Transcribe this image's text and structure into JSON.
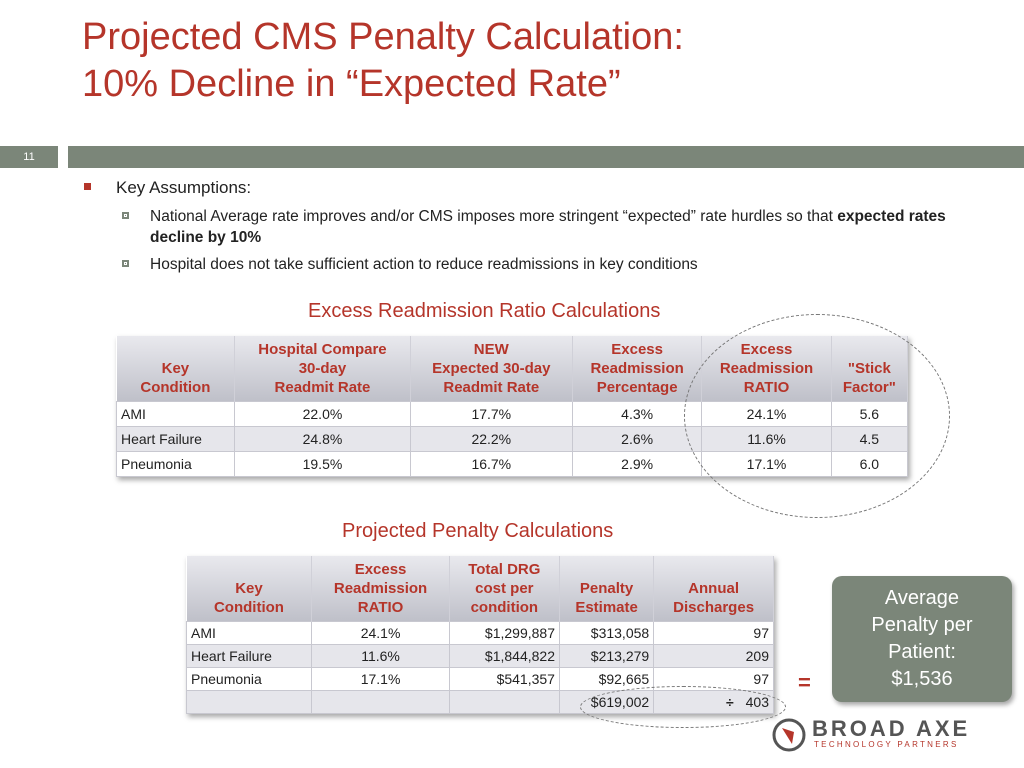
{
  "title": {
    "line1": "Projected CMS Penalty Calculation:",
    "line2": "10% Decline in “Expected Rate”"
  },
  "slide_number": "11",
  "bullets": {
    "main": "Key Assumptions:",
    "sub1_prefix": "National Average rate improves and/or CMS imposes more stringent “expected” rate hurdles so that ",
    "sub1_bold": "expected rates decline by 10%",
    "sub2": "Hospital does not take sufficient action to reduce readmissions in key conditions"
  },
  "table1": {
    "title": "Excess Readmission Ratio Calculations",
    "headers": [
      [
        "Key",
        "Condition"
      ],
      [
        "Hospital Compare",
        "30-day",
        "Readmit Rate"
      ],
      [
        "NEW",
        "Expected 30-day",
        "Readmit Rate"
      ],
      [
        "Excess",
        "Readmission",
        "Percentage"
      ],
      [
        "Excess",
        "Readmission",
        "RATIO"
      ],
      [
        "\"Stick",
        "Factor\""
      ]
    ],
    "rows": [
      [
        "AMI",
        "22.0%",
        "17.7%",
        "4.3%",
        "24.1%",
        "5.6"
      ],
      [
        "Heart Failure",
        "24.8%",
        "22.2%",
        "2.6%",
        "11.6%",
        "4.5"
      ],
      [
        "Pneumonia",
        "19.5%",
        "16.7%",
        "2.9%",
        "17.1%",
        "6.0"
      ]
    ]
  },
  "table2": {
    "title": "Projected Penalty Calculations",
    "headers": [
      [
        "Key",
        "Condition"
      ],
      [
        "Excess",
        "Readmission",
        "RATIO"
      ],
      [
        "Total DRG",
        "cost per",
        "condition"
      ],
      [
        "Penalty",
        "Estimate"
      ],
      [
        "Annual",
        "Discharges"
      ]
    ],
    "rows": [
      [
        "AMI",
        "24.1%",
        "$1,299,887",
        "$313,058",
        "97"
      ],
      [
        "Heart Failure",
        "11.6%",
        "$1,844,822",
        "$213,279",
        "209"
      ],
      [
        "Pneumonia",
        "17.1%",
        "$541,357",
        "$92,665",
        "97"
      ]
    ],
    "total_penalty": "$619,002",
    "divide_symbol": "÷",
    "total_discharges": "403"
  },
  "equals_symbol": "=",
  "average_box": {
    "line1": "Average",
    "line2": "Penalty per",
    "line3": "Patient:",
    "line4": "$1,536"
  },
  "logo": {
    "name": "BROAD AXE",
    "tagline": "TECHNOLOGY PARTNERS"
  },
  "colors": {
    "accent": "#b5352a",
    "bar": "#7b8679"
  }
}
